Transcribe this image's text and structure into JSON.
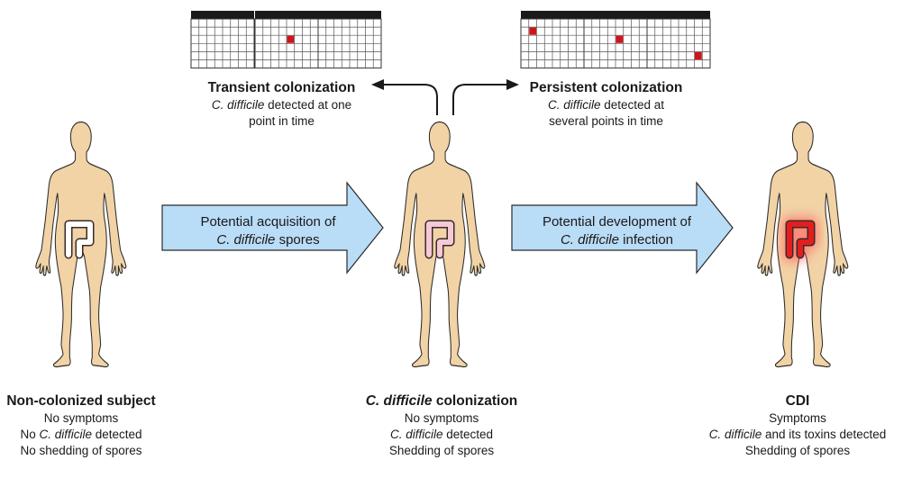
{
  "colors": {
    "skin": "#f1d3a6",
    "skin_outline": "#2b2b2b",
    "arrow_fill": "#b9dcf7",
    "arrow_stroke": "#2b2b2b",
    "colon_clean": "#ffffff",
    "colon_colonized": "#f6c9d7",
    "colon_infected": "#e41e1e",
    "grid_header": "#1a1a1a",
    "grid_mark": "#d0141a"
  },
  "icons": {
    "person": "human-figure-icon",
    "colon": "large-intestine-icon",
    "grid": "calendar-grid-icon"
  },
  "transient": {
    "title": "Transient colonization",
    "line1_italic": "C. difficile",
    "line1_rest": " detected at one",
    "line2": "point in time",
    "grids": [
      {
        "mark": null
      },
      {
        "mark": [
          5,
          3
        ]
      },
      {
        "mark": null
      }
    ]
  },
  "persistent": {
    "title": "Persistent colonization",
    "line1_italic": "C. difficile",
    "line1_rest": " detected at",
    "line2": "several points in time",
    "grids": [
      {
        "mark": [
          2,
          2
        ]
      },
      {
        "mark": [
          5,
          3
        ]
      },
      {
        "mark": [
          7,
          5
        ]
      }
    ]
  },
  "arrow1": {
    "line1": "Potential acquisition of",
    "line2_italic": "C. difficile",
    "line2_rest": " spores"
  },
  "arrow2": {
    "line1": "Potential development of",
    "line2_italic": "C. difficile",
    "line2_rest": " infection"
  },
  "subjects": {
    "noncolonized": {
      "title": "Non-colonized subject",
      "line1": "No symptoms",
      "line2_pre": "No ",
      "line2_italic": "C. difficile",
      "line2_rest": " detected",
      "line3": "No shedding of spores"
    },
    "colonized": {
      "title_italic": "C. difficile",
      "title_rest": " colonization",
      "line1": "No symptoms",
      "line2_italic": "C. difficile",
      "line2_rest": " detected",
      "line3": "Shedding of spores"
    },
    "cdi": {
      "title": "CDI",
      "line1": "Symptoms",
      "line2_italic": "C. difficile",
      "line2_rest": " and its toxins detected",
      "line3": "Shedding of spores"
    }
  }
}
